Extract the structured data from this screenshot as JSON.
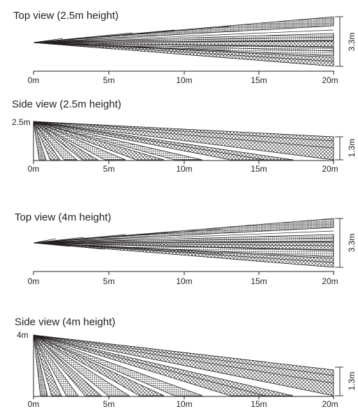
{
  "units": {
    "distance_ticks": [
      "0m",
      "5m",
      "10m",
      "15m",
      "20m"
    ]
  },
  "panels": [
    {
      "id": "top-view-2-5m",
      "kind": "top",
      "title": "Top view (2.5m height)",
      "dimension_label": "3.3m"
    },
    {
      "id": "side-view-2-5m",
      "kind": "side",
      "title": "Side view (2.5m height)",
      "height_label": "2.5m",
      "dimension_label": "1.3m"
    },
    {
      "id": "top-view-4m",
      "kind": "top",
      "title": "Top view (4m height)",
      "dimension_label": "3.3m"
    },
    {
      "id": "side-view-4m",
      "kind": "side",
      "title": "Side view (4m height)",
      "height_label": "4m",
      "dimension_label": "1.3m"
    }
  ],
  "colors": {
    "ink": "#231f20",
    "background": "#ffffff"
  }
}
